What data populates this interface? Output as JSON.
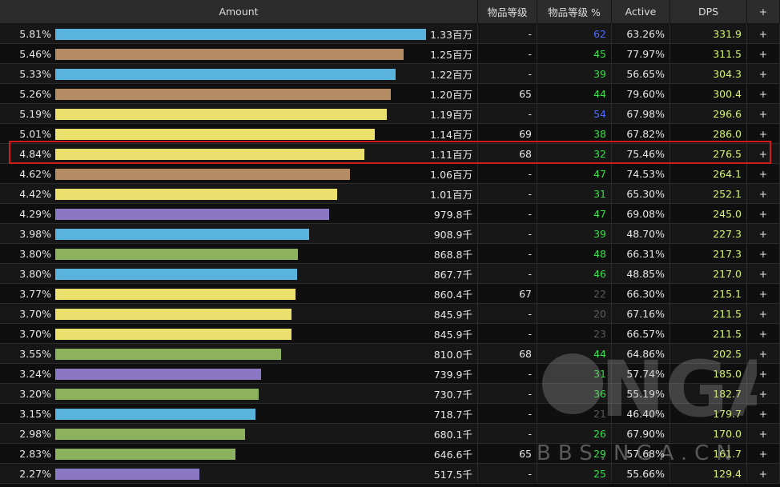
{
  "columns": {
    "amount": "Amount",
    "ilvl": "物品等级",
    "ilvl_pct": "物品等级 %",
    "active": "Active",
    "dps": "DPS",
    "plus": "+"
  },
  "colors": {
    "blue": "#5ab3dc",
    "tan": "#b48b63",
    "yellow": "#ebe06e",
    "purple": "#8a78c2",
    "green": "#8cb25e"
  },
  "rows": [
    {
      "pct": "5.81%",
      "bar": 1.0,
      "color": "blue",
      "amount": "1.33百万",
      "ilvl": "-",
      "ilvl_pct": "62",
      "ip_color": "blue",
      "active": "63.26%",
      "dps": "331.9",
      "plus": "+"
    },
    {
      "pct": "5.46%",
      "bar": 0.94,
      "color": "tan",
      "amount": "1.25百万",
      "ilvl": "-",
      "ilvl_pct": "45",
      "ip_color": "green",
      "active": "77.97%",
      "dps": "311.5",
      "plus": "+"
    },
    {
      "pct": "5.33%",
      "bar": 0.918,
      "color": "blue",
      "amount": "1.22百万",
      "ilvl": "-",
      "ilvl_pct": "39",
      "ip_color": "green",
      "active": "56.65%",
      "dps": "304.3",
      "plus": "+"
    },
    {
      "pct": "5.26%",
      "bar": 0.905,
      "color": "tan",
      "amount": "1.20百万",
      "ilvl": "65",
      "ilvl_pct": "44",
      "ip_color": "green",
      "active": "79.60%",
      "dps": "300.4",
      "plus": "+"
    },
    {
      "pct": "5.19%",
      "bar": 0.894,
      "color": "yellow",
      "amount": "1.19百万",
      "ilvl": "-",
      "ilvl_pct": "54",
      "ip_color": "blue",
      "active": "67.98%",
      "dps": "296.6",
      "plus": "+"
    },
    {
      "pct": "5.01%",
      "bar": 0.861,
      "color": "yellow",
      "amount": "1.14百万",
      "ilvl": "69",
      "ilvl_pct": "38",
      "ip_color": "green",
      "active": "67.82%",
      "dps": "286.0",
      "plus": "+"
    },
    {
      "pct": "4.84%",
      "bar": 0.833,
      "color": "yellow",
      "amount": "1.11百万",
      "ilvl": "68",
      "ilvl_pct": "32",
      "ip_color": "green",
      "active": "75.46%",
      "dps": "276.5",
      "plus": "+"
    },
    {
      "pct": "4.62%",
      "bar": 0.795,
      "color": "tan",
      "amount": "1.06百万",
      "ilvl": "-",
      "ilvl_pct": "47",
      "ip_color": "green",
      "active": "74.53%",
      "dps": "264.1",
      "plus": "+"
    },
    {
      "pct": "4.42%",
      "bar": 0.76,
      "color": "yellow",
      "amount": "1.01百万",
      "ilvl": "-",
      "ilvl_pct": "31",
      "ip_color": "green",
      "active": "65.30%",
      "dps": "252.1",
      "plus": "+"
    },
    {
      "pct": "4.29%",
      "bar": 0.738,
      "color": "purple",
      "amount": "979.8千",
      "ilvl": "-",
      "ilvl_pct": "47",
      "ip_color": "green",
      "active": "69.08%",
      "dps": "245.0",
      "plus": "+"
    },
    {
      "pct": "3.98%",
      "bar": 0.685,
      "color": "blue",
      "amount": "908.9千",
      "ilvl": "-",
      "ilvl_pct": "39",
      "ip_color": "green",
      "active": "48.70%",
      "dps": "227.3",
      "plus": "+"
    },
    {
      "pct": "3.80%",
      "bar": 0.654,
      "color": "green",
      "amount": "868.8千",
      "ilvl": "-",
      "ilvl_pct": "48",
      "ip_color": "green",
      "active": "66.31%",
      "dps": "217.3",
      "plus": "+"
    },
    {
      "pct": "3.80%",
      "bar": 0.652,
      "color": "blue",
      "amount": "867.7千",
      "ilvl": "-",
      "ilvl_pct": "46",
      "ip_color": "green",
      "active": "48.85%",
      "dps": "217.0",
      "plus": "+"
    },
    {
      "pct": "3.77%",
      "bar": 0.647,
      "color": "yellow",
      "amount": "860.4千",
      "ilvl": "67",
      "ilvl_pct": "22",
      "ip_color": "gray",
      "active": "66.30%",
      "dps": "215.1",
      "plus": "+"
    },
    {
      "pct": "3.70%",
      "bar": 0.637,
      "color": "yellow",
      "amount": "845.9千",
      "ilvl": "-",
      "ilvl_pct": "20",
      "ip_color": "gray",
      "active": "67.16%",
      "dps": "211.5",
      "plus": "+"
    },
    {
      "pct": "3.70%",
      "bar": 0.637,
      "color": "yellow",
      "amount": "845.9千",
      "ilvl": "-",
      "ilvl_pct": "23",
      "ip_color": "gray",
      "active": "66.57%",
      "dps": "211.5",
      "plus": "+"
    },
    {
      "pct": "3.55%",
      "bar": 0.609,
      "color": "green",
      "amount": "810.0千",
      "ilvl": "68",
      "ilvl_pct": "44",
      "ip_color": "green",
      "active": "64.86%",
      "dps": "202.5",
      "plus": "+"
    },
    {
      "pct": "3.24%",
      "bar": 0.556,
      "color": "purple",
      "amount": "739.9千",
      "ilvl": "-",
      "ilvl_pct": "31",
      "ip_color": "green",
      "active": "57.74%",
      "dps": "185.0",
      "plus": "+"
    },
    {
      "pct": "3.20%",
      "bar": 0.549,
      "color": "green",
      "amount": "730.7千",
      "ilvl": "-",
      "ilvl_pct": "36",
      "ip_color": "green",
      "active": "55.19%",
      "dps": "182.7",
      "plus": "+"
    },
    {
      "pct": "3.15%",
      "bar": 0.54,
      "color": "blue",
      "amount": "718.7千",
      "ilvl": "-",
      "ilvl_pct": "21",
      "ip_color": "gray",
      "active": "46.40%",
      "dps": "179.7",
      "plus": "+"
    },
    {
      "pct": "2.98%",
      "bar": 0.512,
      "color": "green",
      "amount": "680.1千",
      "ilvl": "-",
      "ilvl_pct": "26",
      "ip_color": "green",
      "active": "67.90%",
      "dps": "170.0",
      "plus": "+"
    },
    {
      "pct": "2.83%",
      "bar": 0.486,
      "color": "green",
      "amount": "646.6千",
      "ilvl": "65",
      "ilvl_pct": "29",
      "ip_color": "green",
      "active": "57.68%",
      "dps": "161.7",
      "plus": "+"
    },
    {
      "pct": "2.27%",
      "bar": 0.389,
      "color": "purple",
      "amount": "517.5千",
      "ilvl": "-",
      "ilvl_pct": "25",
      "ip_color": "green",
      "active": "55.66%",
      "dps": "129.4",
      "plus": "+"
    }
  ],
  "highlighted_row": 6,
  "watermark": {
    "logo": "NGA",
    "site": "BBS.NGA.CN"
  }
}
